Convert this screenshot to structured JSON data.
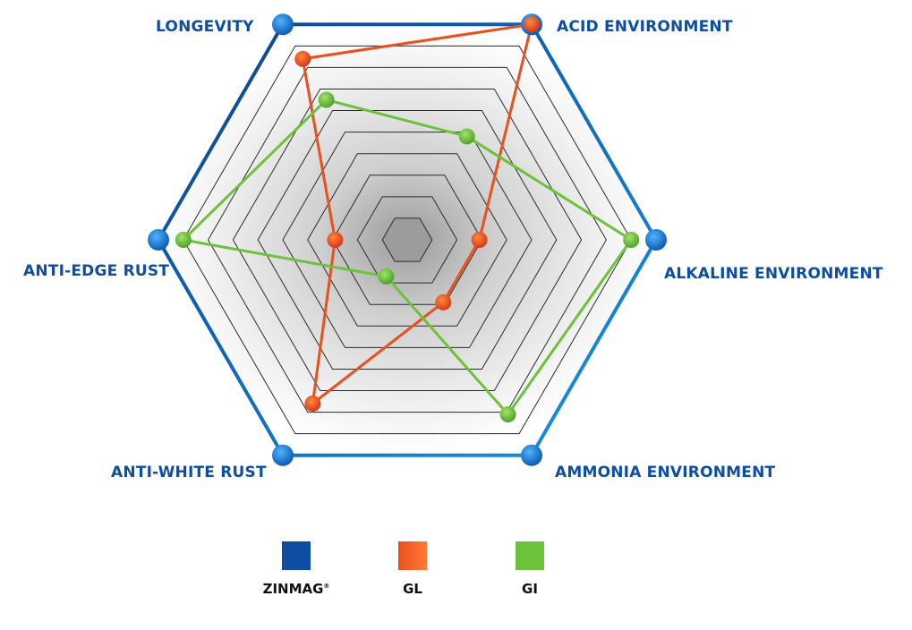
{
  "chart_data": {
    "type": "radar",
    "axes": [
      "LONGEVITY",
      "ACID ENVIRONMENT",
      "ALKALINE ENVIRONMENT",
      "AMMONIA ENVIRONMENT",
      "ANTI-WHITE RUST",
      "ANTI-EDGE RUST"
    ],
    "rings": 10,
    "range": [
      0,
      10
    ],
    "grid": true,
    "legend_position": "bottom",
    "series": [
      {
        "name": "ZINMAG",
        "name_mark": "®",
        "color": "#0d4ea3",
        "values": [
          10,
          10,
          10,
          10,
          10,
          10
        ]
      },
      {
        "name": "GL",
        "name_mark": "",
        "color": "#e8501e",
        "values": [
          8.4,
          10,
          2.9,
          2.9,
          7.6,
          2.9
        ]
      },
      {
        "name": "GI",
        "name_mark": "",
        "color": "#6cc23a",
        "values": [
          6.5,
          4.8,
          9.0,
          8.1,
          1.7,
          9.0
        ]
      }
    ]
  }
}
